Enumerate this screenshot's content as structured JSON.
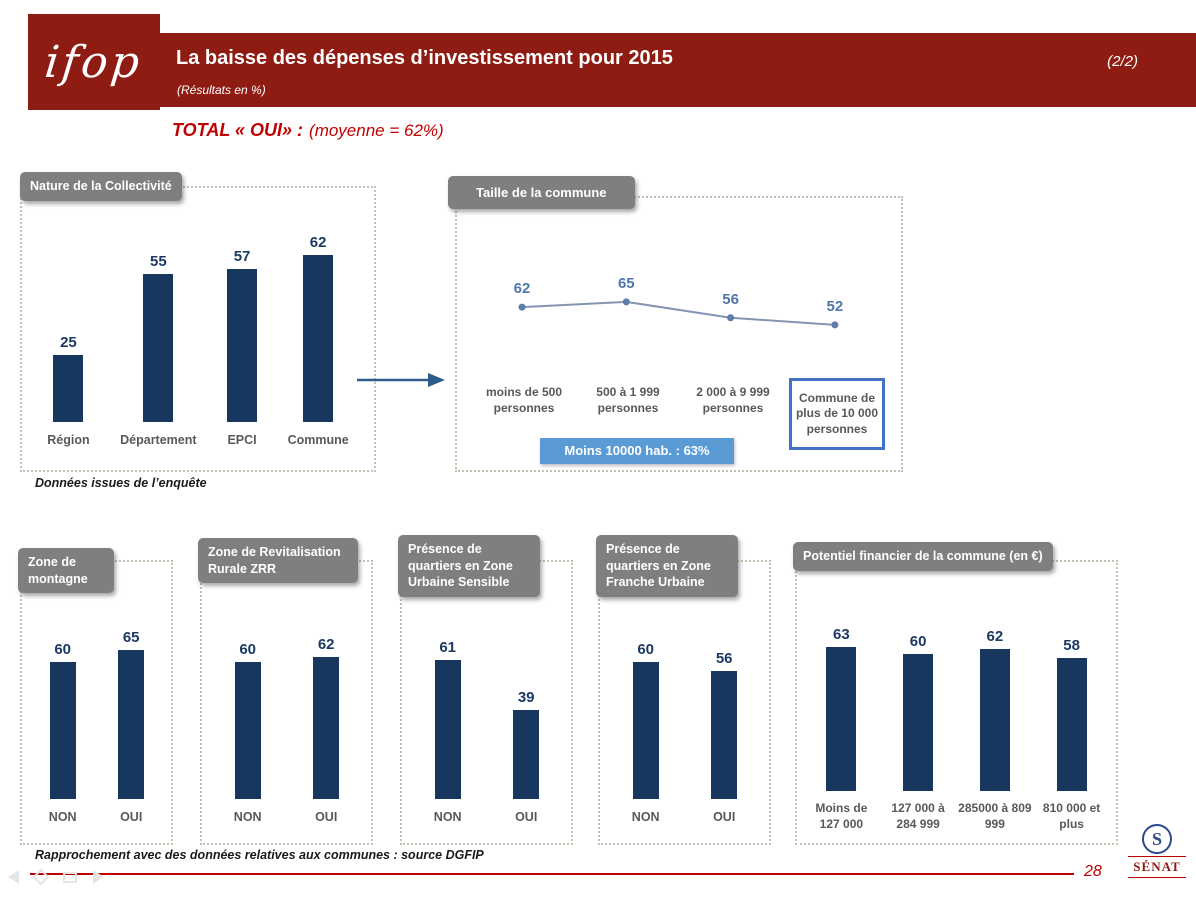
{
  "colors": {
    "maroon": "#8E1C13",
    "navy": "#17375E",
    "navy_label": "#1C3A63",
    "tab_gray": "#7F7F7F",
    "category_gray": "#595959",
    "callout_blue": "#5B9BD5",
    "box_border_blue": "#4472C4",
    "line_blue": "#8494B5",
    "point_label_blue": "#4F76AD",
    "accent_red": "#C00000"
  },
  "header": {
    "logo": "ifop",
    "title": "La baisse des dépenses d’investissement pour 2015",
    "subtitle": "(Résultats en %)",
    "page_marker": "(2/2)"
  },
  "total": {
    "label": "TOTAL « OUI» :",
    "value": "(moyenne = 62%)"
  },
  "notes": {
    "survey": "Données issues de l’enquête",
    "footer": "Rapprochement avec des données relatives aux communes : source DGFIP"
  },
  "footer": {
    "page_number": "28"
  },
  "senat": {
    "word": "SÉNAT",
    "initial": "S"
  },
  "chart_data": [
    {
      "id": "nature",
      "type": "bar",
      "title": "Nature de la Collectivité",
      "categories": [
        "Région",
        "Département",
        "EPCI",
        "Commune"
      ],
      "values": [
        25,
        55,
        57,
        62
      ],
      "ylim": [
        0,
        70
      ],
      "bar_color": "#17375E"
    },
    {
      "id": "taille",
      "type": "line",
      "title": "Taille de la commune",
      "categories": [
        "moins de 500 personnes",
        "500 à 1 999 personnes",
        "2 000 à 9 999 personnes",
        "Commune de plus de 10 000 personnes"
      ],
      "values": [
        62,
        65,
        56,
        52
      ],
      "ylim": [
        45,
        70
      ],
      "highlight_last_category": true,
      "callout": "Moins 10000 hab. : 63%"
    },
    {
      "id": "montagne",
      "type": "bar",
      "title": "Zone de montagne",
      "categories": [
        "NON",
        "OUI"
      ],
      "values": [
        60,
        65
      ],
      "ylim": [
        0,
        70
      ]
    },
    {
      "id": "zrr",
      "type": "bar",
      "title": "Zone de Revitalisation Rurale ZRR",
      "categories": [
        "NON",
        "OUI"
      ],
      "values": [
        60,
        62
      ],
      "ylim": [
        0,
        70
      ]
    },
    {
      "id": "zus",
      "type": "bar",
      "title": "Présence de quartiers en Zone Urbaine Sensible",
      "categories": [
        "NON",
        "OUI"
      ],
      "values": [
        61,
        39
      ],
      "ylim": [
        0,
        70
      ]
    },
    {
      "id": "zfu",
      "type": "bar",
      "title": "Présence de quartiers en Zone Franche Urbaine",
      "categories": [
        "NON",
        "OUI"
      ],
      "values": [
        60,
        56
      ],
      "ylim": [
        0,
        70
      ]
    },
    {
      "id": "potentiel",
      "type": "bar",
      "title": "Potentiel financier de la commune (en €)",
      "categories": [
        "Moins de 127 000",
        "127 000 à 284 999",
        "285000 à 809 999",
        "810 000 et plus"
      ],
      "values": [
        63,
        60,
        62,
        58
      ],
      "ylim": [
        0,
        70
      ]
    }
  ]
}
